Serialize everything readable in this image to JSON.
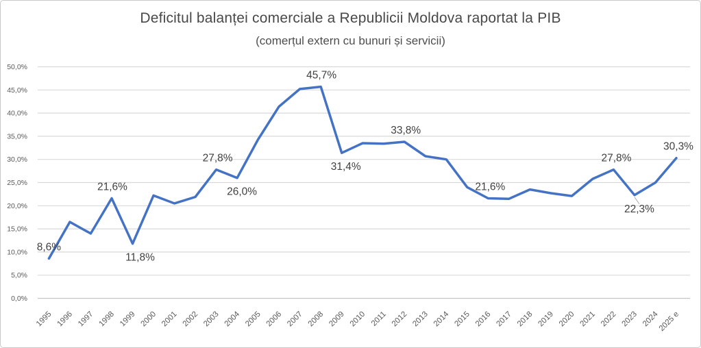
{
  "header": {
    "title": "Deficitul balanței comerciale a Republicii Moldova raportat la PIB",
    "subtitle": "(comerțul extern cu bunuri și servicii)"
  },
  "chart_data": {
    "type": "line",
    "title": "Deficitul balanței comerciale a Republicii Moldova raportat la PIB",
    "subtitle": "(comerțul extern cu bunuri și servicii)",
    "xlabel": "",
    "ylabel": "",
    "legend": "none",
    "grid": true,
    "ylim": [
      0,
      50
    ],
    "ytick_step": 5,
    "ytick_labels": [
      "0,0%",
      "5,0%",
      "10,0%",
      "15,0%",
      "20,0%",
      "25,0%",
      "30,0%",
      "35,0%",
      "40,0%",
      "45,0%",
      "50,0%"
    ],
    "categories": [
      "1995",
      "1996",
      "1997",
      "1998",
      "1999",
      "2000",
      "2001",
      "2002",
      "2003",
      "2004",
      "2005",
      "2006",
      "2007",
      "2008",
      "2009",
      "2010",
      "2011",
      "2012",
      "2013",
      "2014",
      "2015",
      "2016",
      "2017",
      "2018",
      "2019",
      "2020",
      "2021",
      "2022",
      "2023",
      "2024",
      "2025 e"
    ],
    "values": [
      8.6,
      16.5,
      14.0,
      21.6,
      11.8,
      22.2,
      20.5,
      21.9,
      27.8,
      26.0,
      34.3,
      41.4,
      45.2,
      45.7,
      31.4,
      33.5,
      33.4,
      33.8,
      30.7,
      30.0,
      24.0,
      21.6,
      21.5,
      23.5,
      22.7,
      22.1,
      25.8,
      27.8,
      22.3,
      25.0,
      30.3
    ],
    "data_labels": [
      {
        "index": 0,
        "text": "8,6%",
        "placement": "above",
        "dx": 0
      },
      {
        "index": 3,
        "text": "21,6%",
        "placement": "above",
        "dx": 1
      },
      {
        "index": 4,
        "text": "11,8%",
        "placement": "below",
        "dx": 11
      },
      {
        "index": 8,
        "text": "27,8%",
        "placement": "above",
        "dx": 2
      },
      {
        "index": 9,
        "text": "26,0%",
        "placement": "below",
        "dx": 7
      },
      {
        "index": 13,
        "text": "45,7%",
        "placement": "above",
        "dx": 1
      },
      {
        "index": 14,
        "text": "31,4%",
        "placement": "below",
        "dx": 6
      },
      {
        "index": 17,
        "text": "33,8%",
        "placement": "above",
        "dx": 2
      },
      {
        "index": 21,
        "text": "21,6%",
        "placement": "above",
        "dx": 3
      },
      {
        "index": 27,
        "text": "27,8%",
        "placement": "above",
        "dx": 4
      },
      {
        "index": 28,
        "text": "22,3%",
        "placement": "below",
        "dx": 7,
        "leader": true
      },
      {
        "index": 30,
        "text": "30,3%",
        "placement": "above",
        "dx": 3
      }
    ]
  },
  "colors": {
    "line": "#4472C4",
    "gridline": "#D9D9D9",
    "axis_line": "#C4C4C4",
    "axis_label": "#595959",
    "data_label": "#404040",
    "leader_line": "#A6A6A6",
    "title": "#484848",
    "border": "#C9C9C9",
    "background": "#FFFFFF"
  }
}
